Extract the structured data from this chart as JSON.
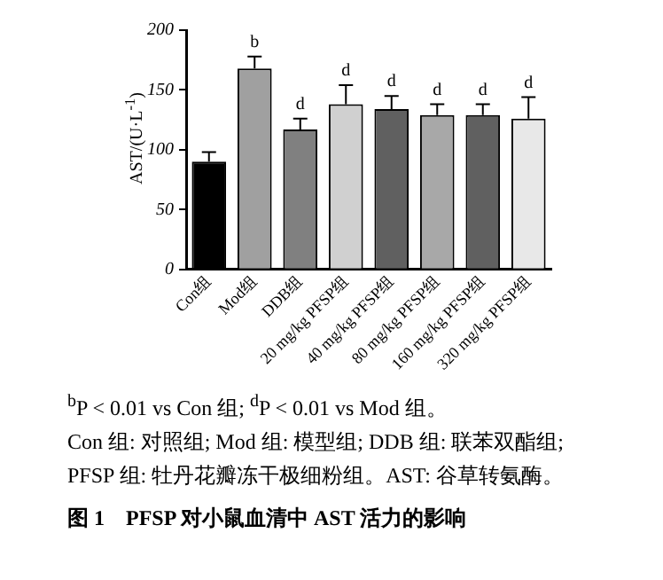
{
  "chart_data": {
    "type": "bar",
    "title": "图 1　PFSP 对小鼠血清中 AST 活力的影响",
    "ylabel": "AST/(U·L$^{-1}$)",
    "categories": [
      "Con组",
      "Mod组",
      "DDB组",
      "20 mg/kg PFSP组",
      "40 mg/kg PFSP组",
      "80 mg/kg PFSP组",
      "160 mg/kg PFSP组",
      "320 mg/kg PFSP组"
    ],
    "values": [
      90,
      168,
      117,
      138,
      134,
      129,
      129,
      126
    ],
    "errors": [
      8,
      10,
      9,
      16,
      11,
      9,
      9,
      18
    ],
    "colors": [
      "#000000",
      "#a0a0a0",
      "#808080",
      "#d0d0d0",
      "#606060",
      "#a8a8a8",
      "#606060",
      "#e8e8e8"
    ],
    "ylim": [
      0,
      200
    ],
    "yticks": [
      0,
      50,
      100,
      150,
      200
    ],
    "grid": false,
    "legend": false,
    "annotations": [
      {
        "text": "b",
        "x": "Mod组",
        "y": 178
      },
      {
        "text": "d",
        "x": "DDB组",
        "y": 126
      },
      {
        "text": "d",
        "x": "20 mg/kg PFSP组",
        "y": 154
      },
      {
        "text": "d",
        "x": "40 mg/kg PFSP组",
        "y": 145
      },
      {
        "text": "d",
        "x": "80 mg/kg PFSP组",
        "y": 138
      },
      {
        "text": "d",
        "x": "160 mg/kg PFSP组",
        "y": 138
      },
      {
        "text": "d",
        "x": "320 mg/kg PFSP组",
        "y": 144
      },
      "$^{b}$P < 0.01 vs Con 组; $^{d}$P < 0.01 vs Mod 组。",
      "Con 组: 对照组; Mod 组: 模型组; DDB 组: 联苯双酯组; PFSP 组: 牡丹花瓣冻干极细粉组。AST: 谷草转氨酶。"
    ]
  }
}
